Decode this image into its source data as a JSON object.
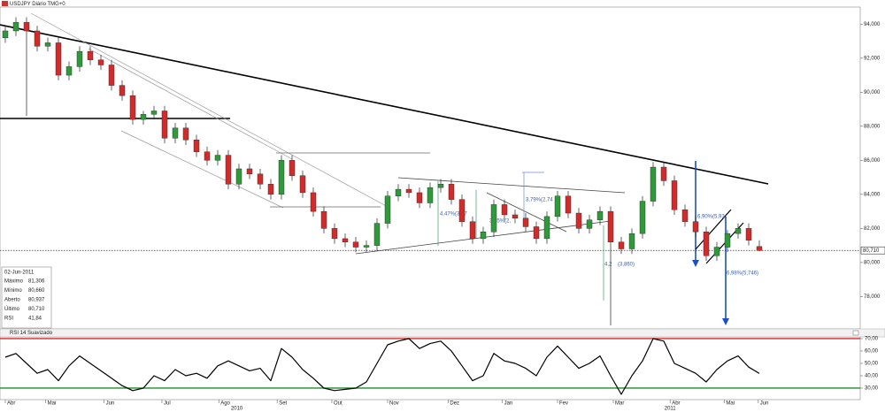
{
  "chart_data": {
    "type": "candlestick",
    "title": "USDJPY Diário TMG+0",
    "up_color": "#2e9a3a",
    "down_color": "#d42a2a",
    "open": [
      93.2,
      93.6,
      94.1,
      93.6,
      92.7,
      92.9,
      91.0,
      91.5,
      92.4,
      91.9,
      91.6,
      90.4,
      89.8,
      88.4,
      88.7,
      88.9,
      87.3,
      87.9,
      87.2,
      86.5,
      86.0,
      86.3,
      84.6,
      85.5,
      85.2,
      84.6,
      84.0,
      86.0,
      85.1,
      84.1,
      83.0,
      82.0,
      81.4,
      81.2,
      80.9,
      81.0,
      82.3,
      83.9,
      84.3,
      84.1,
      83.5,
      84.4,
      84.6,
      83.7,
      82.4,
      81.4,
      81.8,
      83.4,
      82.8,
      82.6,
      82.1,
      81.4,
      82.7,
      83.9,
      82.9,
      82.0,
      82.5,
      83.0,
      81.2,
      80.8,
      81.7,
      83.6,
      85.6,
      84.8,
      83.1,
      82.4,
      81.8,
      80.4,
      80.9,
      81.7,
      82.0,
      80.937
    ],
    "high": [
      93.9,
      94.4,
      94.4,
      93.9,
      93.2,
      93.2,
      91.8,
      92.7,
      92.7,
      92.2,
      91.9,
      90.7,
      90.1,
      88.9,
      89.2,
      89.2,
      88.2,
      88.2,
      87.5,
      86.8,
      86.6,
      86.6,
      85.8,
      85.8,
      85.5,
      84.9,
      86.3,
      86.3,
      85.4,
      84.4,
      83.3,
      82.3,
      81.7,
      81.5,
      81.3,
      82.6,
      84.2,
      84.6,
      84.6,
      84.4,
      84.7,
      84.9,
      84.9,
      84.0,
      82.7,
      82.1,
      83.7,
      83.7,
      83.1,
      82.9,
      82.4,
      83.0,
      84.2,
      84.2,
      83.2,
      82.8,
      83.3,
      83.3,
      81.5,
      82.0,
      83.9,
      85.9,
      85.9,
      85.1,
      83.4,
      82.7,
      82.1,
      81.2,
      81.9,
      82.3,
      82.3,
      81.306
    ],
    "low": [
      92.9,
      93.3,
      88.6,
      92.4,
      92.4,
      90.7,
      90.7,
      91.2,
      91.6,
      91.3,
      90.1,
      89.5,
      88.1,
      88.1,
      88.4,
      87.0,
      87.0,
      86.9,
      86.2,
      85.7,
      85.7,
      84.3,
      84.3,
      84.9,
      84.3,
      83.7,
      83.7,
      84.8,
      83.8,
      82.7,
      81.7,
      81.1,
      80.9,
      80.6,
      80.6,
      80.7,
      82.0,
      83.6,
      83.8,
      83.2,
      83.2,
      84.1,
      83.4,
      82.1,
      81.1,
      81.1,
      81.5,
      82.5,
      82.3,
      81.8,
      81.1,
      81.1,
      82.4,
      82.6,
      81.7,
      81.7,
      82.2,
      76.3,
      80.5,
      80.5,
      81.4,
      83.3,
      84.5,
      82.8,
      82.1,
      81.5,
      80.1,
      80.1,
      80.6,
      81.4,
      81.0,
      80.66
    ],
    "close": [
      93.6,
      94.1,
      93.6,
      92.7,
      92.9,
      91.0,
      91.5,
      92.4,
      91.9,
      91.6,
      90.4,
      89.8,
      88.4,
      88.7,
      88.9,
      87.3,
      87.9,
      87.2,
      86.5,
      86.0,
      86.3,
      84.6,
      85.5,
      85.2,
      84.6,
      84.0,
      86.0,
      85.1,
      84.1,
      83.0,
      82.0,
      81.4,
      81.2,
      80.9,
      81.0,
      82.3,
      83.9,
      84.3,
      84.1,
      83.5,
      84.4,
      84.6,
      83.7,
      82.4,
      81.4,
      81.8,
      83.4,
      82.8,
      82.6,
      82.1,
      81.4,
      82.7,
      83.9,
      82.9,
      82.0,
      82.5,
      83.0,
      81.2,
      80.8,
      81.7,
      83.6,
      85.6,
      84.8,
      83.1,
      82.4,
      81.8,
      80.4,
      80.9,
      81.7,
      82.0,
      81.3,
      80.71
    ],
    "ylim": [
      76.1,
      95
    ],
    "yticks": [
      {
        "value": 94,
        "label": "94,000"
      },
      {
        "value": 92,
        "label": "92,000"
      },
      {
        "value": 90,
        "label": "90,000"
      },
      {
        "value": 88,
        "label": "88,000"
      },
      {
        "value": 86,
        "label": "86,000"
      },
      {
        "value": 84,
        "label": "84,000"
      },
      {
        "value": 82,
        "label": "82,000"
      },
      {
        "value": 80,
        "label": "80,000"
      },
      {
        "value": 78,
        "label": "78,000"
      }
    ],
    "last_price": {
      "value": 80.71,
      "label": "80,710"
    },
    "xlim": [
      0,
      81
    ],
    "xticks": [
      {
        "value": 0.5,
        "label": "Abr"
      },
      {
        "value": 4.3,
        "label": "Mai"
      },
      {
        "value": 9.8,
        "label": "Jun"
      },
      {
        "value": 15.25,
        "label": "Jul"
      },
      {
        "value": 20.6,
        "label": "Ago"
      },
      {
        "value": 26.1,
        "label": "Set"
      },
      {
        "value": 31.25,
        "label": "Out"
      },
      {
        "value": 36.5,
        "label": "Nov"
      },
      {
        "value": 42.2,
        "label": "Dez"
      },
      {
        "value": 47.3,
        "label": "Jan"
      },
      {
        "value": 52.5,
        "label": "Fev"
      },
      {
        "value": 57.75,
        "label": "Mar"
      },
      {
        "value": 63.1,
        "label": "Abr"
      },
      {
        "value": 68.2,
        "label": "Mai"
      },
      {
        "value": 71.4,
        "label": "Jun"
      }
    ],
    "years": [
      {
        "value": 22.3,
        "label": "2010"
      },
      {
        "value": 63.1,
        "label": "2011"
      }
    ],
    "annotations": [
      "4,47%(3,77",
      "3,45%(2,",
      "3,79%(2,74",
      "4,2",
      "(3,860)",
      "6,90%(5,93",
      "6,98%(5,746)"
    ],
    "info": {
      "date": "02-Jun-2011",
      "rows": [
        [
          "Máximo",
          "81,306"
        ],
        [
          "Mínimo",
          "80,660"
        ],
        [
          "Aberto",
          "80,937"
        ],
        [
          "Último",
          "80,710"
        ],
        [
          "RSI",
          "41,84"
        ]
      ]
    },
    "rsi": {
      "title": "RSI 14 Suavizado",
      "color": "#000000",
      "values": [
        55,
        58,
        50,
        42,
        45,
        36,
        48,
        56,
        50,
        44,
        38,
        32,
        28,
        30,
        40,
        36,
        45,
        40,
        42,
        38,
        48,
        52,
        48,
        44,
        46,
        36,
        62,
        55,
        45,
        38,
        30,
        28,
        29,
        30,
        35,
        50,
        65,
        68,
        70,
        62,
        66,
        68,
        60,
        48,
        36,
        40,
        58,
        52,
        50,
        46,
        40,
        55,
        64,
        55,
        46,
        50,
        56,
        40,
        25,
        40,
        52,
        70,
        68,
        50,
        46,
        42,
        35,
        45,
        52,
        56,
        47,
        41.84
      ],
      "ylim": [
        20.7,
        70.7
      ],
      "yticks": [
        {
          "value": 70,
          "label": "70,00"
        },
        {
          "value": 60,
          "label": "60,00"
        },
        {
          "value": 50,
          "label": "50,00"
        },
        {
          "value": 40,
          "label": "40,00"
        },
        {
          "value": 30,
          "label": "30,00"
        }
      ],
      "upper": 70,
      "lower": 30,
      "upper_color": "#d42a2a",
      "lower_color": "#1e8a2a"
    }
  }
}
